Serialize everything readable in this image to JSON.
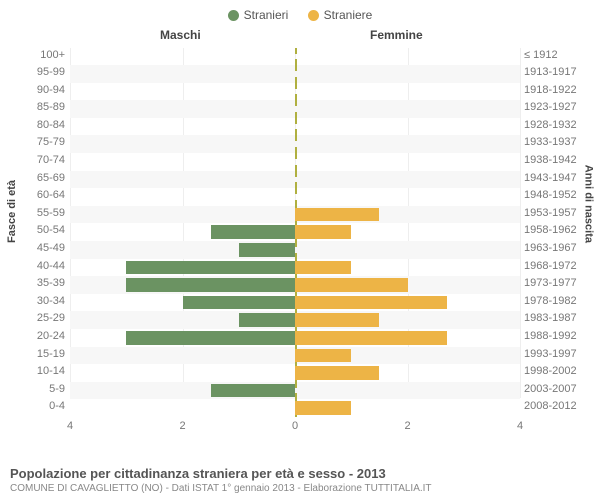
{
  "chart": {
    "type": "population-pyramid",
    "legend": [
      {
        "label": "Stranieri",
        "color": "#6b9362"
      },
      {
        "label": "Straniere",
        "color": "#edb446"
      }
    ],
    "column_headers": {
      "left": "Maschi",
      "right": "Femmine"
    },
    "y_title_left": "Fasce di età",
    "y_title_right": "Anni di nascita",
    "x_axis": {
      "min": -4,
      "max": 4,
      "ticks_left": [
        4,
        2,
        0
      ],
      "ticks_right": [
        0,
        2,
        4
      ]
    },
    "colors": {
      "male": "#6b9362",
      "female": "#edb446",
      "row_alt": "#f7f7f7",
      "grid": "#eeeeee",
      "center_dash": "#b0b040"
    },
    "bands": [
      {
        "age": "100+",
        "birth": "≤ 1912",
        "m": 0,
        "f": 0
      },
      {
        "age": "95-99",
        "birth": "1913-1917",
        "m": 0,
        "f": 0
      },
      {
        "age": "90-94",
        "birth": "1918-1922",
        "m": 0,
        "f": 0
      },
      {
        "age": "85-89",
        "birth": "1923-1927",
        "m": 0,
        "f": 0
      },
      {
        "age": "80-84",
        "birth": "1928-1932",
        "m": 0,
        "f": 0
      },
      {
        "age": "75-79",
        "birth": "1933-1937",
        "m": 0,
        "f": 0
      },
      {
        "age": "70-74",
        "birth": "1938-1942",
        "m": 0,
        "f": 0
      },
      {
        "age": "65-69",
        "birth": "1943-1947",
        "m": 0,
        "f": 0
      },
      {
        "age": "60-64",
        "birth": "1948-1952",
        "m": 0,
        "f": 0
      },
      {
        "age": "55-59",
        "birth": "1953-1957",
        "m": 0,
        "f": 1.5
      },
      {
        "age": "50-54",
        "birth": "1958-1962",
        "m": 1.5,
        "f": 1
      },
      {
        "age": "45-49",
        "birth": "1963-1967",
        "m": 1,
        "f": 0
      },
      {
        "age": "40-44",
        "birth": "1968-1972",
        "m": 3,
        "f": 1
      },
      {
        "age": "35-39",
        "birth": "1973-1977",
        "m": 3,
        "f": 2
      },
      {
        "age": "30-34",
        "birth": "1978-1982",
        "m": 2,
        "f": 2.7
      },
      {
        "age": "25-29",
        "birth": "1983-1987",
        "m": 1,
        "f": 1.5
      },
      {
        "age": "20-24",
        "birth": "1988-1992",
        "m": 3,
        "f": 2.7
      },
      {
        "age": "15-19",
        "birth": "1993-1997",
        "m": 0,
        "f": 1
      },
      {
        "age": "10-14",
        "birth": "1998-2002",
        "m": 0,
        "f": 1.5
      },
      {
        "age": "5-9",
        "birth": "2003-2007",
        "m": 1.5,
        "f": 0
      },
      {
        "age": "0-4",
        "birth": "2008-2012",
        "m": 0,
        "f": 1
      }
    ],
    "title": "Popolazione per cittadinanza straniera per età e sesso - 2013",
    "subtitle": "COMUNE DI CAVAGLIETTO (NO) - Dati ISTAT 1° gennaio 2013 - Elaborazione TUTTITALIA.IT"
  }
}
